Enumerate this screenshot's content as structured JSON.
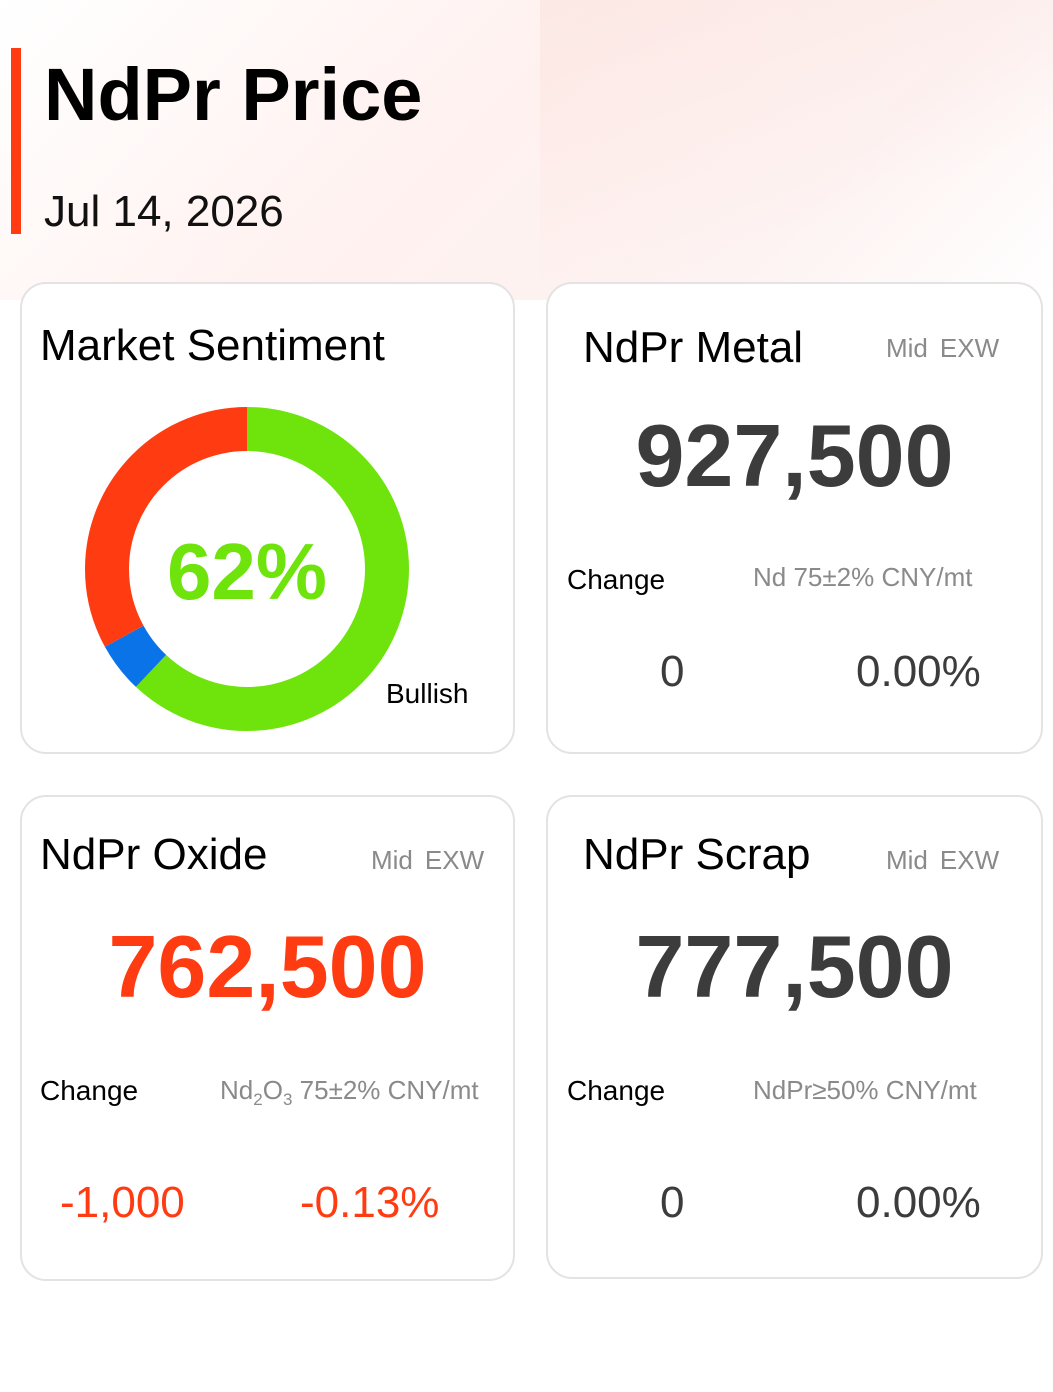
{
  "header": {
    "title": "NdPr Price",
    "date": "Jul 14, 2026"
  },
  "colors": {
    "accent": "#ff3b12",
    "bullish": "#6ee30c",
    "neutral": "#0a73e8",
    "bearish": "#ff3b12",
    "price_default": "#3c3c3c"
  },
  "sentiment": {
    "title": "Market Sentiment",
    "percent_label": "62%",
    "label": "Bullish",
    "segments": [
      {
        "name": "bullish",
        "fraction": 0.62,
        "color": "#6ee30c"
      },
      {
        "name": "neutral",
        "fraction": 0.05,
        "color": "#0a73e8"
      },
      {
        "name": "bearish",
        "fraction": 0.33,
        "color": "#ff3b12"
      }
    ]
  },
  "metal": {
    "title": "NdPr Metal",
    "tag_mid": "Mid",
    "tag_exw": "EXW",
    "price": "927,500",
    "change_label": "Change",
    "spec": "Nd 75±2% CNY/mt",
    "change_abs": "0",
    "change_pct": "0.00%"
  },
  "oxide": {
    "title": "NdPr Oxide",
    "tag_mid": "Mid",
    "tag_exw": "EXW",
    "price": "762,500",
    "change_label": "Change",
    "spec_nd": "Nd",
    "spec_sub2": "2",
    "spec_o": "O",
    "spec_sub3": "3",
    "spec_rest": " 75±2% CNY/mt",
    "change_abs": "-1,000",
    "change_pct": "-0.13%"
  },
  "scrap": {
    "title": "NdPr Scrap",
    "tag_mid": "Mid",
    "tag_exw": "EXW",
    "price": "777,500",
    "change_label": "Change",
    "spec": "NdPr≥50% CNY/mt",
    "change_abs": "0",
    "change_pct": "0.00%"
  }
}
